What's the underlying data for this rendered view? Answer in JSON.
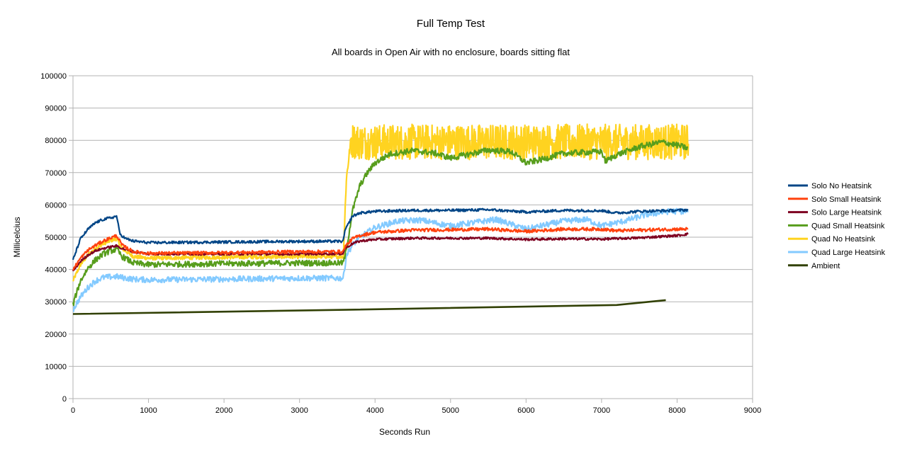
{
  "chart_data": {
    "type": "line",
    "title": "Full Temp Test",
    "subtitle": "All boards in Open Air with no enclosure, boards sitting flat",
    "xlabel": "Seconds Run",
    "ylabel": "Millicelcius",
    "xlim": [
      0,
      9000
    ],
    "ylim": [
      0,
      100000
    ],
    "xticks": [
      "0",
      "1000",
      "2000",
      "3000",
      "4000",
      "5000",
      "6000",
      "7000",
      "8000",
      "9000"
    ],
    "yticks": [
      "0",
      "10000",
      "20000",
      "30000",
      "40000",
      "50000",
      "60000",
      "70000",
      "80000",
      "90000",
      "100000"
    ],
    "grid": "horizontal",
    "legend_position": "right",
    "series": [
      {
        "name": "Solo No Heatsink",
        "color": "#004586",
        "noise": 400,
        "points": [
          [
            0,
            43000
          ],
          [
            100,
            49500
          ],
          [
            200,
            52500
          ],
          [
            300,
            54500
          ],
          [
            400,
            55500
          ],
          [
            500,
            56000
          ],
          [
            580,
            56500
          ],
          [
            620,
            51000
          ],
          [
            700,
            49500
          ],
          [
            800,
            48800
          ],
          [
            1000,
            48300
          ],
          [
            2000,
            48500
          ],
          [
            3000,
            48700
          ],
          [
            3580,
            48700
          ],
          [
            3600,
            52000
          ],
          [
            3700,
            56500
          ],
          [
            3800,
            57500
          ],
          [
            4000,
            58000
          ],
          [
            4500,
            58300
          ],
          [
            5000,
            58300
          ],
          [
            5500,
            58500
          ],
          [
            6000,
            57800
          ],
          [
            6500,
            58300
          ],
          [
            7000,
            58200
          ],
          [
            7200,
            57500
          ],
          [
            7500,
            58000
          ],
          [
            8000,
            58300
          ],
          [
            8150,
            58500
          ]
        ]
      },
      {
        "name": "Solo Small Heatsink",
        "color": "#ff420e",
        "noise": 500,
        "points": [
          [
            0,
            40000
          ],
          [
            100,
            43500
          ],
          [
            200,
            46000
          ],
          [
            300,
            47500
          ],
          [
            400,
            48800
          ],
          [
            500,
            49800
          ],
          [
            580,
            50500
          ],
          [
            650,
            47500
          ],
          [
            800,
            45500
          ],
          [
            1000,
            45000
          ],
          [
            2000,
            45200
          ],
          [
            3000,
            45500
          ],
          [
            3580,
            45500
          ],
          [
            3600,
            47000
          ],
          [
            3700,
            49500
          ],
          [
            3800,
            50500
          ],
          [
            4000,
            51500
          ],
          [
            4500,
            52200
          ],
          [
            5000,
            52300
          ],
          [
            5500,
            52500
          ],
          [
            6000,
            51800
          ],
          [
            6500,
            52500
          ],
          [
            7000,
            52500
          ],
          [
            7200,
            52000
          ],
          [
            7500,
            52200
          ],
          [
            8000,
            52500
          ],
          [
            8150,
            52500
          ]
        ]
      },
      {
        "name": "Solo Large Heatsink",
        "color": "#7e0021",
        "noise": 350,
        "points": [
          [
            0,
            39500
          ],
          [
            100,
            42500
          ],
          [
            200,
            44500
          ],
          [
            300,
            45800
          ],
          [
            400,
            46500
          ],
          [
            500,
            47000
          ],
          [
            580,
            47300
          ],
          [
            650,
            46500
          ],
          [
            800,
            45500
          ],
          [
            1000,
            44800
          ],
          [
            2000,
            44800
          ],
          [
            3000,
            44800
          ],
          [
            3580,
            44900
          ],
          [
            3600,
            46500
          ],
          [
            3700,
            48000
          ],
          [
            3800,
            48800
          ],
          [
            4000,
            49300
          ],
          [
            4500,
            49700
          ],
          [
            5000,
            49700
          ],
          [
            5500,
            49700
          ],
          [
            6000,
            49300
          ],
          [
            6500,
            49500
          ],
          [
            7000,
            49400
          ],
          [
            7500,
            49800
          ],
          [
            8000,
            50500
          ],
          [
            8150,
            51000
          ]
        ]
      },
      {
        "name": "Quad Small Heatsink",
        "color": "#579d1c",
        "noise": 900,
        "points": [
          [
            0,
            29000
          ],
          [
            50,
            33000
          ],
          [
            100,
            36500
          ],
          [
            200,
            40500
          ],
          [
            300,
            43000
          ],
          [
            400,
            44800
          ],
          [
            500,
            45800
          ],
          [
            580,
            46200
          ],
          [
            650,
            44000
          ],
          [
            800,
            42000
          ],
          [
            1000,
            41500
          ],
          [
            2000,
            41800
          ],
          [
            3000,
            42000
          ],
          [
            3580,
            42000
          ],
          [
            3620,
            46000
          ],
          [
            3700,
            58000
          ],
          [
            3800,
            66000
          ],
          [
            3900,
            70000
          ],
          [
            4000,
            73000
          ],
          [
            4200,
            75800
          ],
          [
            4500,
            76800
          ],
          [
            4800,
            76000
          ],
          [
            5000,
            74500
          ],
          [
            5200,
            75500
          ],
          [
            5500,
            77000
          ],
          [
            5800,
            76500
          ],
          [
            6000,
            73000
          ],
          [
            6200,
            74000
          ],
          [
            6500,
            76000
          ],
          [
            7000,
            76500
          ],
          [
            7050,
            73500
          ],
          [
            7200,
            75500
          ],
          [
            7500,
            78000
          ],
          [
            7800,
            79500
          ],
          [
            8000,
            78500
          ],
          [
            8150,
            77500
          ]
        ]
      },
      {
        "name": "Quad No Heatsink",
        "color": "#ffd320",
        "noise": 5500,
        "points": [
          [
            0,
            36500
          ],
          [
            100,
            41500
          ],
          [
            200,
            44500
          ],
          [
            300,
            46500
          ],
          [
            400,
            48000
          ],
          [
            500,
            49000
          ],
          [
            580,
            49500
          ],
          [
            650,
            46500
          ],
          [
            800,
            44000
          ],
          [
            1000,
            43500
          ],
          [
            2000,
            43800
          ],
          [
            3000,
            44000
          ],
          [
            3580,
            44000
          ],
          [
            3620,
            68000
          ],
          [
            3680,
            80000
          ],
          [
            3800,
            79500
          ],
          [
            4500,
            79500
          ],
          [
            5500,
            79500
          ],
          [
            6500,
            79500
          ],
          [
            7500,
            79500
          ],
          [
            8150,
            79500
          ]
        ]
      },
      {
        "name": "Quad Large Heatsink",
        "color": "#83caff",
        "noise": 900,
        "points": [
          [
            0,
            27500
          ],
          [
            50,
            29500
          ],
          [
            100,
            31500
          ],
          [
            200,
            34500
          ],
          [
            300,
            36500
          ],
          [
            400,
            37500
          ],
          [
            500,
            37700
          ],
          [
            580,
            37800
          ],
          [
            650,
            37500
          ],
          [
            800,
            37000
          ],
          [
            1000,
            36800
          ],
          [
            2000,
            37000
          ],
          [
            3000,
            37300
          ],
          [
            3580,
            37300
          ],
          [
            3620,
            44500
          ],
          [
            3700,
            47500
          ],
          [
            3800,
            50000
          ],
          [
            4000,
            53000
          ],
          [
            4300,
            55000
          ],
          [
            4600,
            55300
          ],
          [
            5000,
            53500
          ],
          [
            5300,
            54500
          ],
          [
            5600,
            55500
          ],
          [
            6000,
            52500
          ],
          [
            6200,
            53500
          ],
          [
            6500,
            55000
          ],
          [
            6800,
            55500
          ],
          [
            7000,
            53500
          ],
          [
            7300,
            55000
          ],
          [
            7600,
            57000
          ],
          [
            7900,
            58000
          ],
          [
            8150,
            58000
          ]
        ]
      },
      {
        "name": "Ambient",
        "color": "#314004",
        "noise": 0,
        "points": [
          [
            0,
            26200
          ],
          [
            3600,
            27500
          ],
          [
            7200,
            29000
          ],
          [
            7850,
            30500
          ]
        ]
      }
    ]
  }
}
